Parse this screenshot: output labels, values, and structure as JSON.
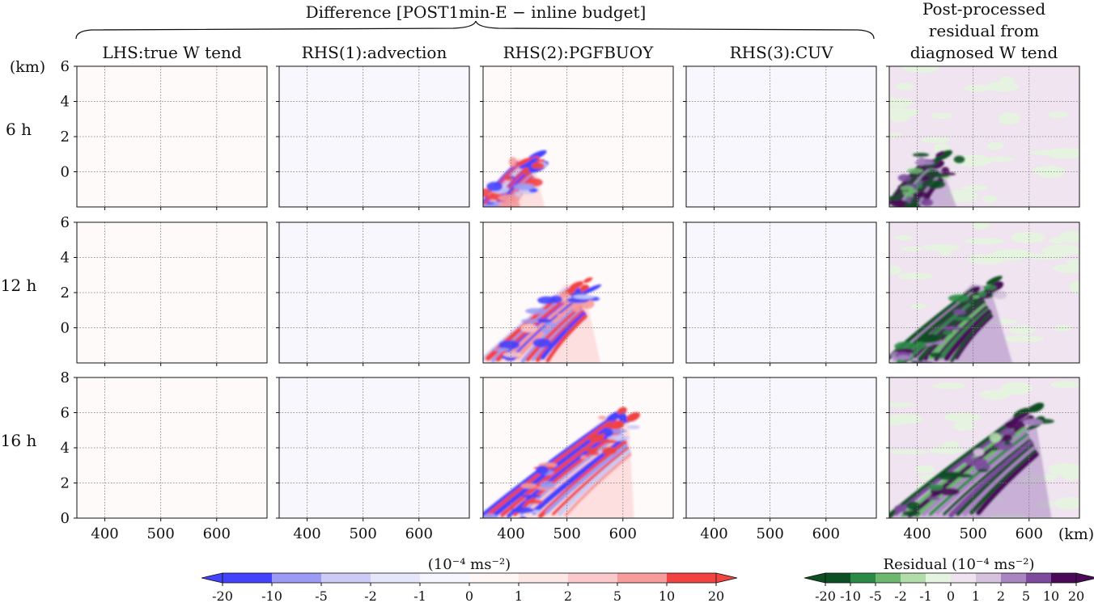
{
  "figure": {
    "group_title": "Difference [POST1min-E − inline budget]",
    "right_title_lines": [
      "Post-processed",
      "residual from",
      "diagnosed W tend"
    ],
    "km_label_left": "(km)",
    "km_label_bottom": "(km)"
  },
  "chart_data": {
    "type": "heatmap",
    "columns": [
      "LHS:true W tend",
      "RHS(1):advection",
      "RHS(2):PGFBUOY",
      "RHS(3):CUV",
      "Post-processed residual from diagnosed W tend"
    ],
    "rows": [
      {
        "label": "6 h",
        "yticks": [
          0,
          2,
          4,
          6
        ],
        "ylim": [
          -2,
          6
        ]
      },
      {
        "label": "12 h",
        "yticks": [
          0,
          2,
          4,
          6
        ],
        "ylim": [
          -2,
          6
        ]
      },
      {
        "label": "16 h",
        "yticks": [
          0,
          2,
          4,
          6,
          8
        ],
        "ylim": [
          0,
          8
        ]
      }
    ],
    "xticks": [
      400,
      500,
      600
    ],
    "xlim": [
      350,
      690
    ],
    "grid": true,
    "colorbars": [
      {
        "label": "(10⁻⁴ ms⁻²)",
        "ticks": [
          "-20",
          "-10",
          "-5",
          "-2",
          "-1",
          "0",
          "1",
          "2",
          "5",
          "10",
          "20"
        ],
        "colors": [
          "#4343ff",
          "#9b9bf5",
          "#cbcbf5",
          "#e6e6fa",
          "#f6f6ff",
          "#fff6f6",
          "#fde6e6",
          "#fbc9c9",
          "#f79b9b",
          "#f24343"
        ]
      },
      {
        "label": "Residual (10⁻⁴ ms⁻²)",
        "ticks": [
          "-20",
          "-10",
          "-5",
          "-2",
          "-1",
          "0",
          "1",
          "2",
          "5",
          "10",
          "20"
        ],
        "colors": [
          "#0b4f23",
          "#2b8a46",
          "#6cb86f",
          "#b2ddab",
          "#e4f4df",
          "#eee3ef",
          "#d7c2de",
          "#a985c2",
          "#7d4a9e",
          "#4a0a58"
        ]
      }
    ],
    "features": [
      {
        "row": 0,
        "col": 2,
        "kind": "rwb",
        "peak_x": 420,
        "peak_z": 0.8,
        "band_top_z": 1.6,
        "base_x_left": 350,
        "base_x_right": 460,
        "strength": 20
      },
      {
        "row": 0,
        "col": 4,
        "kind": "resid",
        "peak_x": 420,
        "peak_z": 0.8,
        "band_top_z": 1.6,
        "base_x_left": 350,
        "base_x_right": 470,
        "strength": 20
      },
      {
        "row": 1,
        "col": 2,
        "kind": "rwb",
        "peak_x": 510,
        "peak_z": 2.5,
        "band_top_z": 3.6,
        "base_x_left": 350,
        "base_x_right": 560,
        "strength": 20
      },
      {
        "row": 1,
        "col": 4,
        "kind": "resid",
        "peak_x": 510,
        "peak_z": 2.5,
        "band_top_z": 3.8,
        "base_x_left": 350,
        "base_x_right": 570,
        "strength": 20
      },
      {
        "row": 2,
        "col": 2,
        "kind": "rwb",
        "peak_x": 590,
        "peak_z": 6.0,
        "band_top_z": 4.5,
        "base_x_left": 350,
        "base_x_right": 620,
        "strength": 20
      },
      {
        "row": 2,
        "col": 4,
        "kind": "resid",
        "peak_x": 590,
        "peak_z": 6.0,
        "band_top_z": 4.8,
        "base_x_left": 350,
        "base_x_right": 640,
        "strength": 20
      }
    ]
  }
}
